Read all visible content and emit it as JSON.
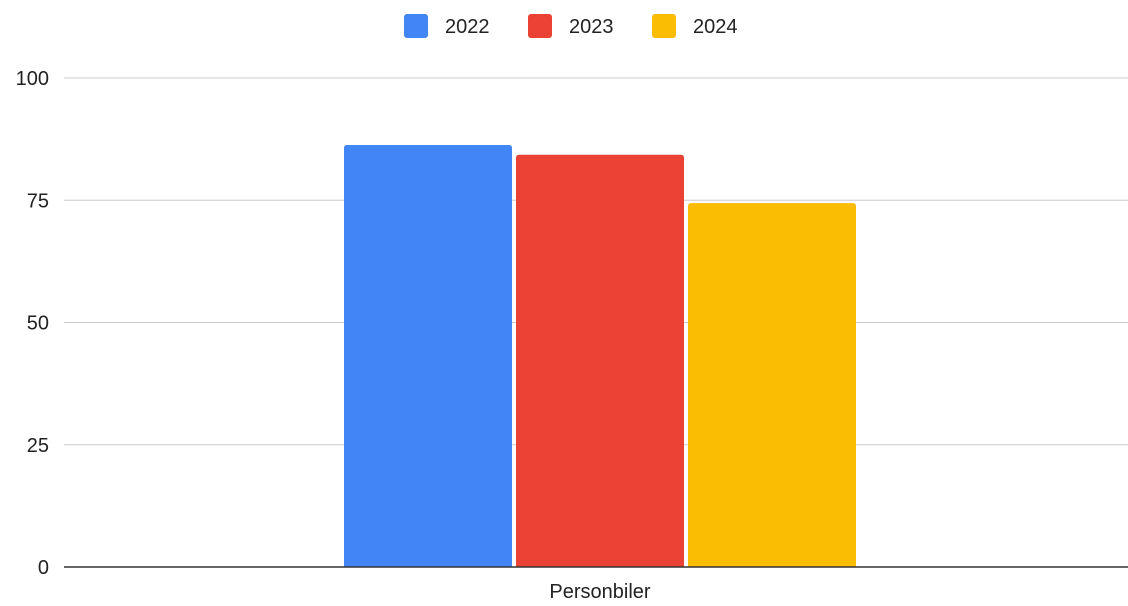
{
  "chart_data": {
    "type": "bar",
    "categories": [
      "Personbiler"
    ],
    "series": [
      {
        "name": "2022",
        "values": [
          86.3
        ],
        "color": "#4285F4"
      },
      {
        "name": "2023",
        "values": [
          84.3
        ],
        "color": "#EA4335"
      },
      {
        "name": "2024",
        "values": [
          74.4
        ],
        "color": "#FBBC04"
      }
    ],
    "title": "",
    "xlabel": "",
    "ylabel": "",
    "ylim": [
      0,
      100
    ],
    "yticks": [
      0,
      25,
      50,
      75,
      100
    ],
    "grid": true,
    "legend": "top-center"
  }
}
